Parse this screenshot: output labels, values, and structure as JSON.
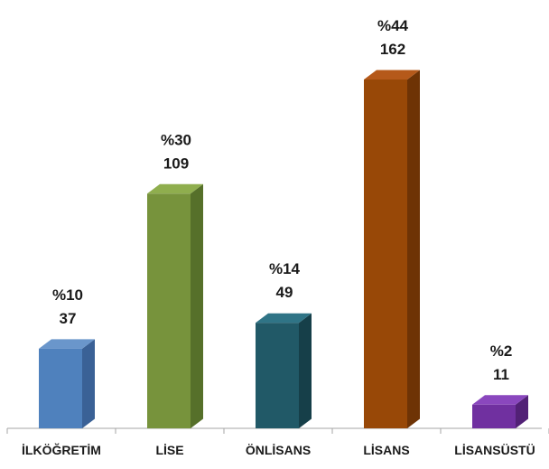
{
  "chart_data": {
    "type": "bar",
    "title": "",
    "xlabel": "",
    "ylabel": "",
    "ylim": [
      0,
      162
    ],
    "grid": false,
    "legend": "none",
    "style": "3d-column",
    "categories": [
      "İLKÖĞRETİM",
      "LİSE",
      "ÖNLİSANS",
      "LİSANS",
      "LİSANSÜSTÜ"
    ],
    "values": [
      37,
      109,
      49,
      162,
      11
    ],
    "percent_labels": [
      "%10",
      "%30",
      "%14",
      "%44",
      "%2"
    ],
    "count_labels": [
      "37",
      "109",
      "49",
      "162",
      "11"
    ],
    "colors": [
      {
        "front": "#4F81BD",
        "side": "#3A6196",
        "top": "#6A96CB"
      },
      {
        "front": "#77933C",
        "side": "#56702A",
        "top": "#8FAE4E"
      },
      {
        "front": "#215967",
        "side": "#163F49",
        "top": "#2F7486"
      },
      {
        "front": "#984807",
        "side": "#6E3305",
        "top": "#B5591A"
      },
      {
        "front": "#7030A0",
        "side": "#522176",
        "top": "#8A47BE"
      }
    ]
  }
}
